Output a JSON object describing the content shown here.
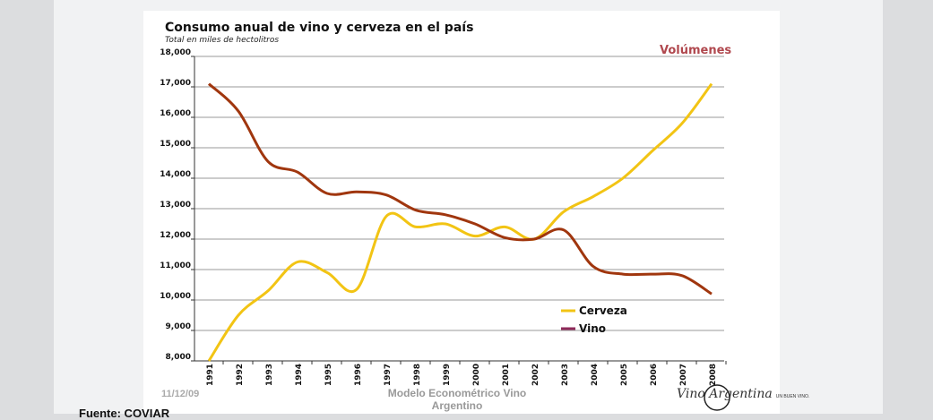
{
  "chart_data": {
    "type": "line",
    "title": "Consumo anual de vino y cerveza en el país",
    "subtitle": "Total en miles de hectolitros",
    "annotation": "Volúmenes",
    "x": [
      "1991",
      "1992",
      "1993",
      "1994",
      "1995",
      "1996",
      "1997",
      "1998",
      "1999",
      "2000",
      "2001",
      "2002",
      "2003",
      "2004",
      "2005",
      "2006",
      "2007",
      "2008"
    ],
    "ylim": [
      8000,
      18000
    ],
    "yticks": [
      "8,000",
      "9,000",
      "10,000",
      "11,000",
      "12,000",
      "13,000",
      "14,000",
      "15,000",
      "16,000",
      "17,000",
      "18,000"
    ],
    "grid": true,
    "legend_position": "bottom-right",
    "series": [
      {
        "name": "Cerveza",
        "color": "#f2c414",
        "values": [
          8000,
          9500,
          10300,
          11250,
          10900,
          10350,
          12750,
          12400,
          12500,
          12100,
          12400,
          12000,
          12900,
          13400,
          14000,
          14900,
          15800,
          17100
        ]
      },
      {
        "name": "Vino",
        "color": "#a0360e",
        "legend_color": "#8e2a5a",
        "values": [
          17100,
          16200,
          14550,
          14200,
          13500,
          13550,
          13450,
          12950,
          12800,
          12500,
          12050,
          12000,
          12300,
          11100,
          10850,
          10850,
          10800,
          10200
        ]
      }
    ]
  },
  "footer": {
    "date": "11/12/09",
    "center_line1": "Modelo Econométrico Vino",
    "center_line2": "Argentino",
    "source": "Fuente: COVIAR"
  },
  "logo": {
    "text": "Vino Argentina",
    "tagline": "UN BUEN VINO."
  }
}
